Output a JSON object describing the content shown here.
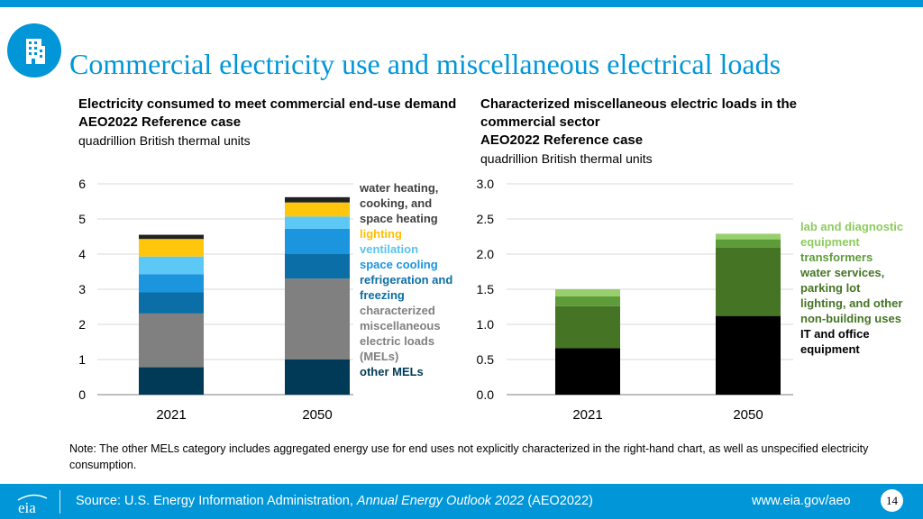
{
  "page": {
    "title": "Commercial electricity use and miscellaneous electrical loads",
    "note": "Note: The other MELs category includes aggregated energy use for end uses not explicitly characterized in the right-hand chart, as well as unspecified electricity consumption.",
    "icon": "office-building-icon"
  },
  "left_head": {
    "title": "Electricity consumed to meet commercial end-use demand",
    "case": "AEO2022 Reference case",
    "unit": "quadrillion British thermal units"
  },
  "right_head": {
    "title": "Characterized miscellaneous electric loads in the commercial sector",
    "case": "AEO2022 Reference case",
    "unit": "quadrillion British thermal units"
  },
  "footer": {
    "source_prefix": "Source: U.S. Energy Information Administration, ",
    "source_title": "Annual Energy Outlook 2022",
    "source_suffix": " (AEO2022)",
    "url": "www.eia.gov/aeo",
    "page_number": "14",
    "logo_text": "eia"
  },
  "chart_data": [
    {
      "type": "bar",
      "stacked": true,
      "title": "Electricity consumed to meet commercial end-use demand",
      "ylabel": "quadrillion British thermal units",
      "categories": [
        "2021",
        "2050"
      ],
      "ylim": [
        0,
        6
      ],
      "yticks": [
        "0",
        "1",
        "2",
        "3",
        "4",
        "5",
        "6"
      ],
      "series": [
        {
          "name": "other MELs",
          "color": "#003a57",
          "values": [
            0.78,
            1.0
          ]
        },
        {
          "name": "characterized miscellaneous electric loads (MELs)",
          "color": "#808080",
          "values": [
            1.53,
            2.3
          ]
        },
        {
          "name": "refrigeration and freezing",
          "color": "#0b6ea6",
          "values": [
            0.6,
            0.7
          ]
        },
        {
          "name": "space cooling",
          "color": "#1b95de",
          "values": [
            0.52,
            0.72
          ]
        },
        {
          "name": "ventilation",
          "color": "#5cc8f5",
          "values": [
            0.5,
            0.35
          ]
        },
        {
          "name": "lighting",
          "color": "#ffc60b",
          "values": [
            0.5,
            0.4
          ]
        },
        {
          "name": "water heating, cooking, and space heating",
          "color": "#222222",
          "values": [
            0.12,
            0.15
          ]
        }
      ]
    },
    {
      "type": "bar",
      "stacked": true,
      "title": "Characterized miscellaneous electric loads in the commercial sector",
      "ylabel": "quadrillion British thermal units",
      "categories": [
        "2021",
        "2050"
      ],
      "ylim": [
        0,
        3
      ],
      "yticks": [
        "0.0",
        "0.5",
        "1.0",
        "1.5",
        "2.0",
        "2.5",
        "3.0"
      ],
      "series": [
        {
          "name": "IT and office equipment",
          "color": "#000000",
          "values": [
            0.66,
            1.12
          ]
        },
        {
          "name": "water services, parking lot lighting, and other non-building uses",
          "color": "#457425",
          "values": [
            0.6,
            0.97
          ]
        },
        {
          "name": "transformers",
          "color": "#5e9c3a",
          "values": [
            0.14,
            0.12
          ]
        },
        {
          "name": "lab and diagnostic equipment",
          "color": "#97cf6d",
          "values": [
            0.1,
            0.08
          ]
        }
      ]
    }
  ],
  "left_legend": [
    {
      "text": "water heating,\ncooking, and\nspace heating",
      "color": "#404040"
    },
    {
      "text": "lighting",
      "color": "#ffc000"
    },
    {
      "text": "ventilation",
      "color": "#5ac2ee"
    },
    {
      "text": "space cooling",
      "color": "#1b95de"
    },
    {
      "text": "refrigeration and\nfreezing",
      "color": "#0b6ea6"
    },
    {
      "text": "characterized\nmiscellaneous\nelectric loads\n(MELs)",
      "color": "#808080"
    },
    {
      "text": "other MELs",
      "color": "#003a57"
    }
  ],
  "right_legend": [
    {
      "text": "lab and diagnostic\nequipment",
      "color": "#8dcb5e"
    },
    {
      "text": "transformers",
      "color": "#5e9c3a"
    },
    {
      "text": "water services,\nparking lot\nlighting, and other\nnon-building uses",
      "color": "#457425"
    },
    {
      "text": "IT and office\nequipment",
      "color": "#000000"
    }
  ]
}
